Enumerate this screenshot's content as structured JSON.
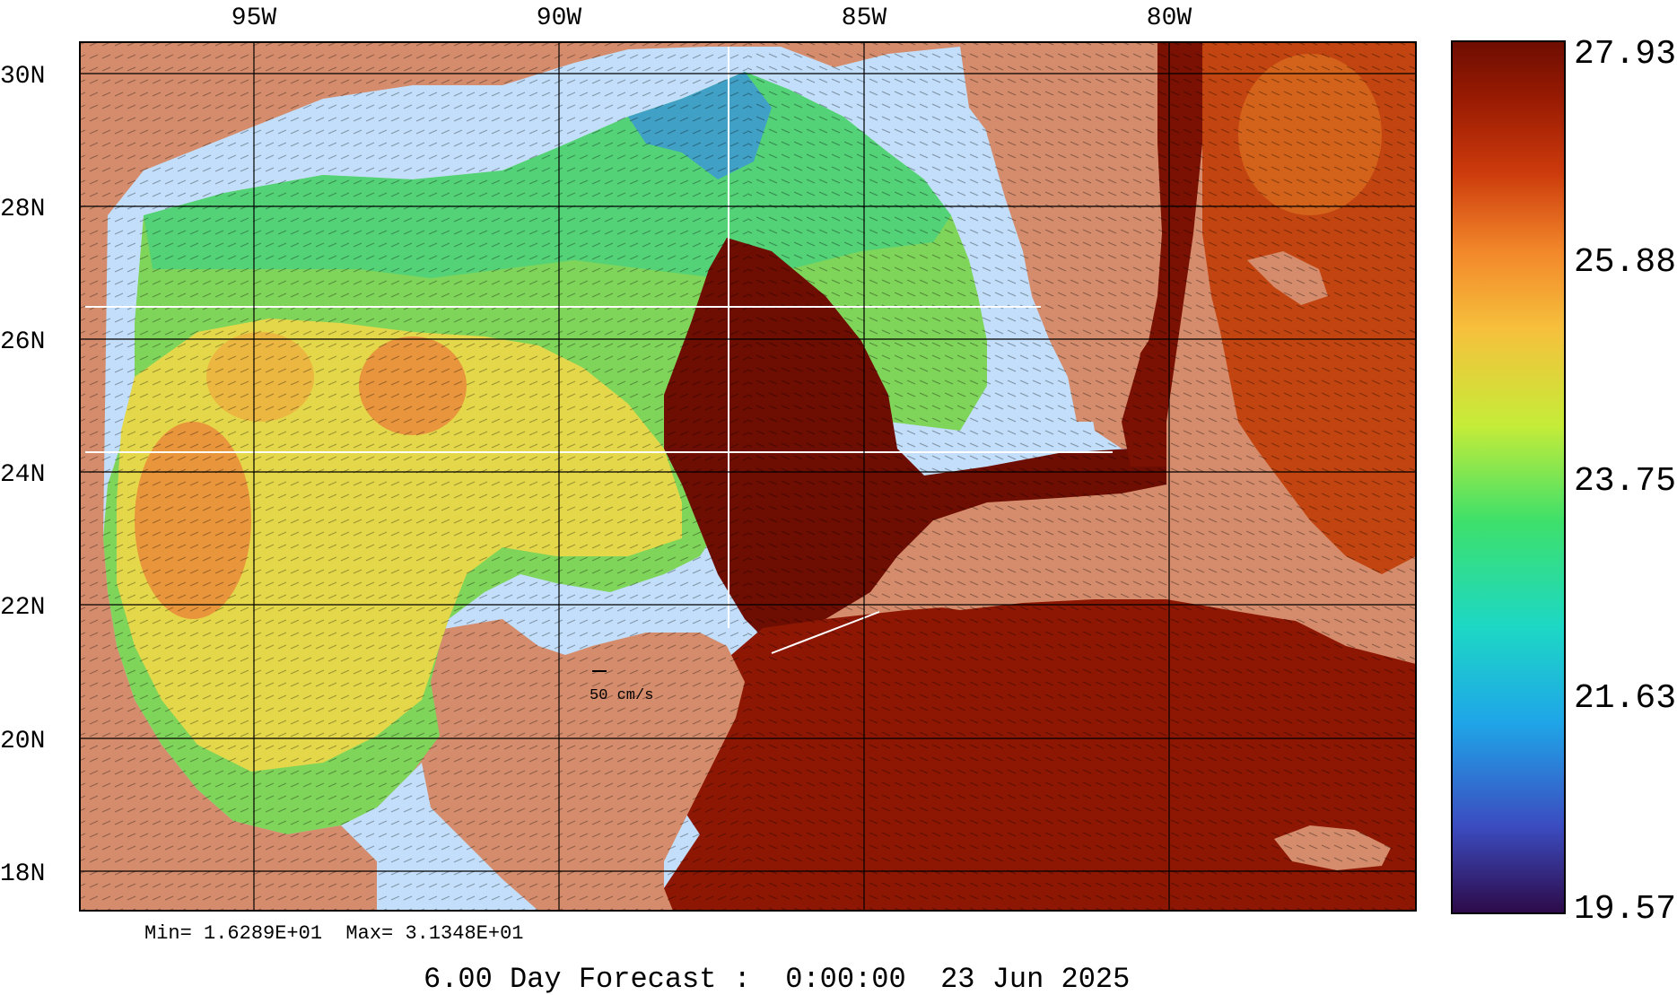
{
  "map": {
    "longitude_labels": [
      "95W",
      "90W",
      "85W",
      "80W"
    ],
    "latitude_labels": [
      "30N",
      "28N",
      "26N",
      "24N",
      "22N",
      "20N",
      "18N"
    ],
    "land_color": "#d48c6c",
    "shelf_color": "#c2defa",
    "grid_color": "#000000",
    "scale_arrow_label": "50 cm/s"
  },
  "colorbar": {
    "tick_labels": [
      "27.93",
      "25.88",
      "23.75",
      "21.63",
      "19.57"
    ],
    "colors": [
      "#2d0a48",
      "#3b4cc0",
      "#1fa6e8",
      "#1dd8c4",
      "#3ee06a",
      "#c6ec38",
      "#f6c03c",
      "#f2872a",
      "#cc3a0c",
      "#9b1c03",
      "#6e0d01"
    ]
  },
  "stats": {
    "text": "Min= 1.6289E+01  Max= 3.1348E+01"
  },
  "forecast": {
    "text": "6.00 Day Forecast :  0:00:00  23 Jun 2025"
  }
}
